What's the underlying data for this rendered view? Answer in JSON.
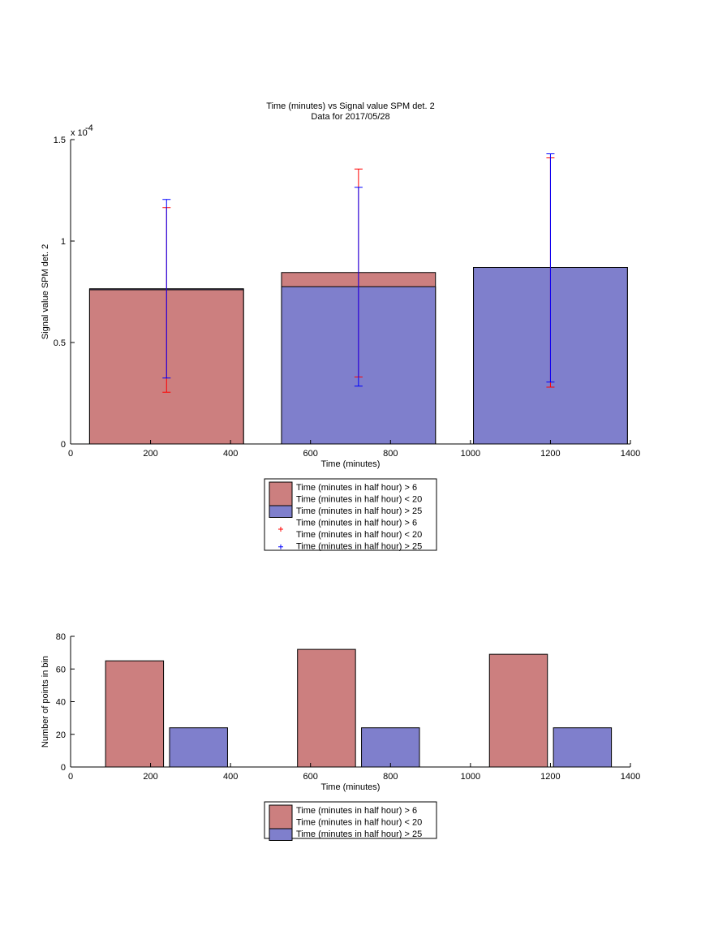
{
  "colors": {
    "red_bar": "#cc7f7f",
    "blue_bar": "#7f7fcc",
    "red_err": "#ff0000",
    "blue_err": "#0000ff"
  },
  "chart_data": [
    {
      "type": "bar",
      "title": "Time (minutes) vs Signal value SPM det. 2",
      "subtitle": "Data for 2017/05/28",
      "xlabel": "Time (minutes)",
      "ylabel": "Signal value SPM det. 2",
      "y_multiplier": "x 10",
      "y_exponent": "-4",
      "xlim": [
        0,
        1400
      ],
      "ylim": [
        0,
        1.5
      ],
      "xticks": [
        "0",
        "200",
        "400",
        "600",
        "800",
        "1000",
        "1200",
        "1400"
      ],
      "yticks": [
        "0",
        "0.5",
        "1",
        "1.5"
      ],
      "x": [
        240,
        720,
        1200
      ],
      "bar_width": 385,
      "series": [
        {
          "name": "Time (minutes in half hour) > 6\nTime (minutes in half hour) < 20",
          "color": "red",
          "values": [
            0.76,
            0.845,
            0.87
          ],
          "error_low": [
            0.255,
            0.33,
            0.28
          ],
          "error_high": [
            1.165,
            1.355,
            1.41
          ]
        },
        {
          "name": "Time (minutes in half hour) > 25",
          "color": "blue",
          "values": [
            0.765,
            0.775,
            0.87
          ],
          "error_low": [
            0.325,
            0.285,
            0.305
          ],
          "error_high": [
            1.205,
            1.265,
            1.43
          ]
        }
      ],
      "legend": [
        {
          "kind": "bar",
          "color": "red",
          "lines": [
            "Time (minutes in half hour) > 6",
            "Time (minutes in half hour) < 20"
          ]
        },
        {
          "kind": "bar",
          "color": "blue",
          "lines": [
            "Time (minutes in half hour) > 25"
          ]
        },
        {
          "kind": "marker",
          "color": "red",
          "lines": [
            "Time (minutes in half hour) > 6",
            "Time (minutes in half hour) < 20"
          ]
        },
        {
          "kind": "marker",
          "color": "blue",
          "lines": [
            "Time (minutes in half hour) > 25"
          ]
        }
      ]
    },
    {
      "type": "bar",
      "xlabel": "Time (minutes)",
      "ylabel": "Number of points in bin",
      "xlim": [
        0,
        1400
      ],
      "ylim": [
        0,
        80
      ],
      "xticks": [
        "0",
        "200",
        "400",
        "600",
        "800",
        "1000",
        "1200",
        "1400"
      ],
      "yticks": [
        "0",
        "20",
        "40",
        "60",
        "80"
      ],
      "bar_width": 145,
      "series": [
        {
          "name": "Time (minutes in half hour) > 6\nTime (minutes in half hour) < 20",
          "color": "red",
          "x": [
            160,
            640,
            1120
          ],
          "values": [
            65,
            72,
            69
          ]
        },
        {
          "name": "Time (minutes in half hour) > 25",
          "color": "blue",
          "x": [
            320,
            800,
            1280
          ],
          "values": [
            24,
            24,
            24
          ]
        }
      ],
      "legend": [
        {
          "kind": "bar",
          "color": "red",
          "lines": [
            "Time (minutes in half hour) > 6",
            "Time (minutes in half hour) < 20"
          ]
        },
        {
          "kind": "bar",
          "color": "blue",
          "lines": [
            "Time (minutes in half hour) > 25"
          ]
        }
      ]
    }
  ]
}
